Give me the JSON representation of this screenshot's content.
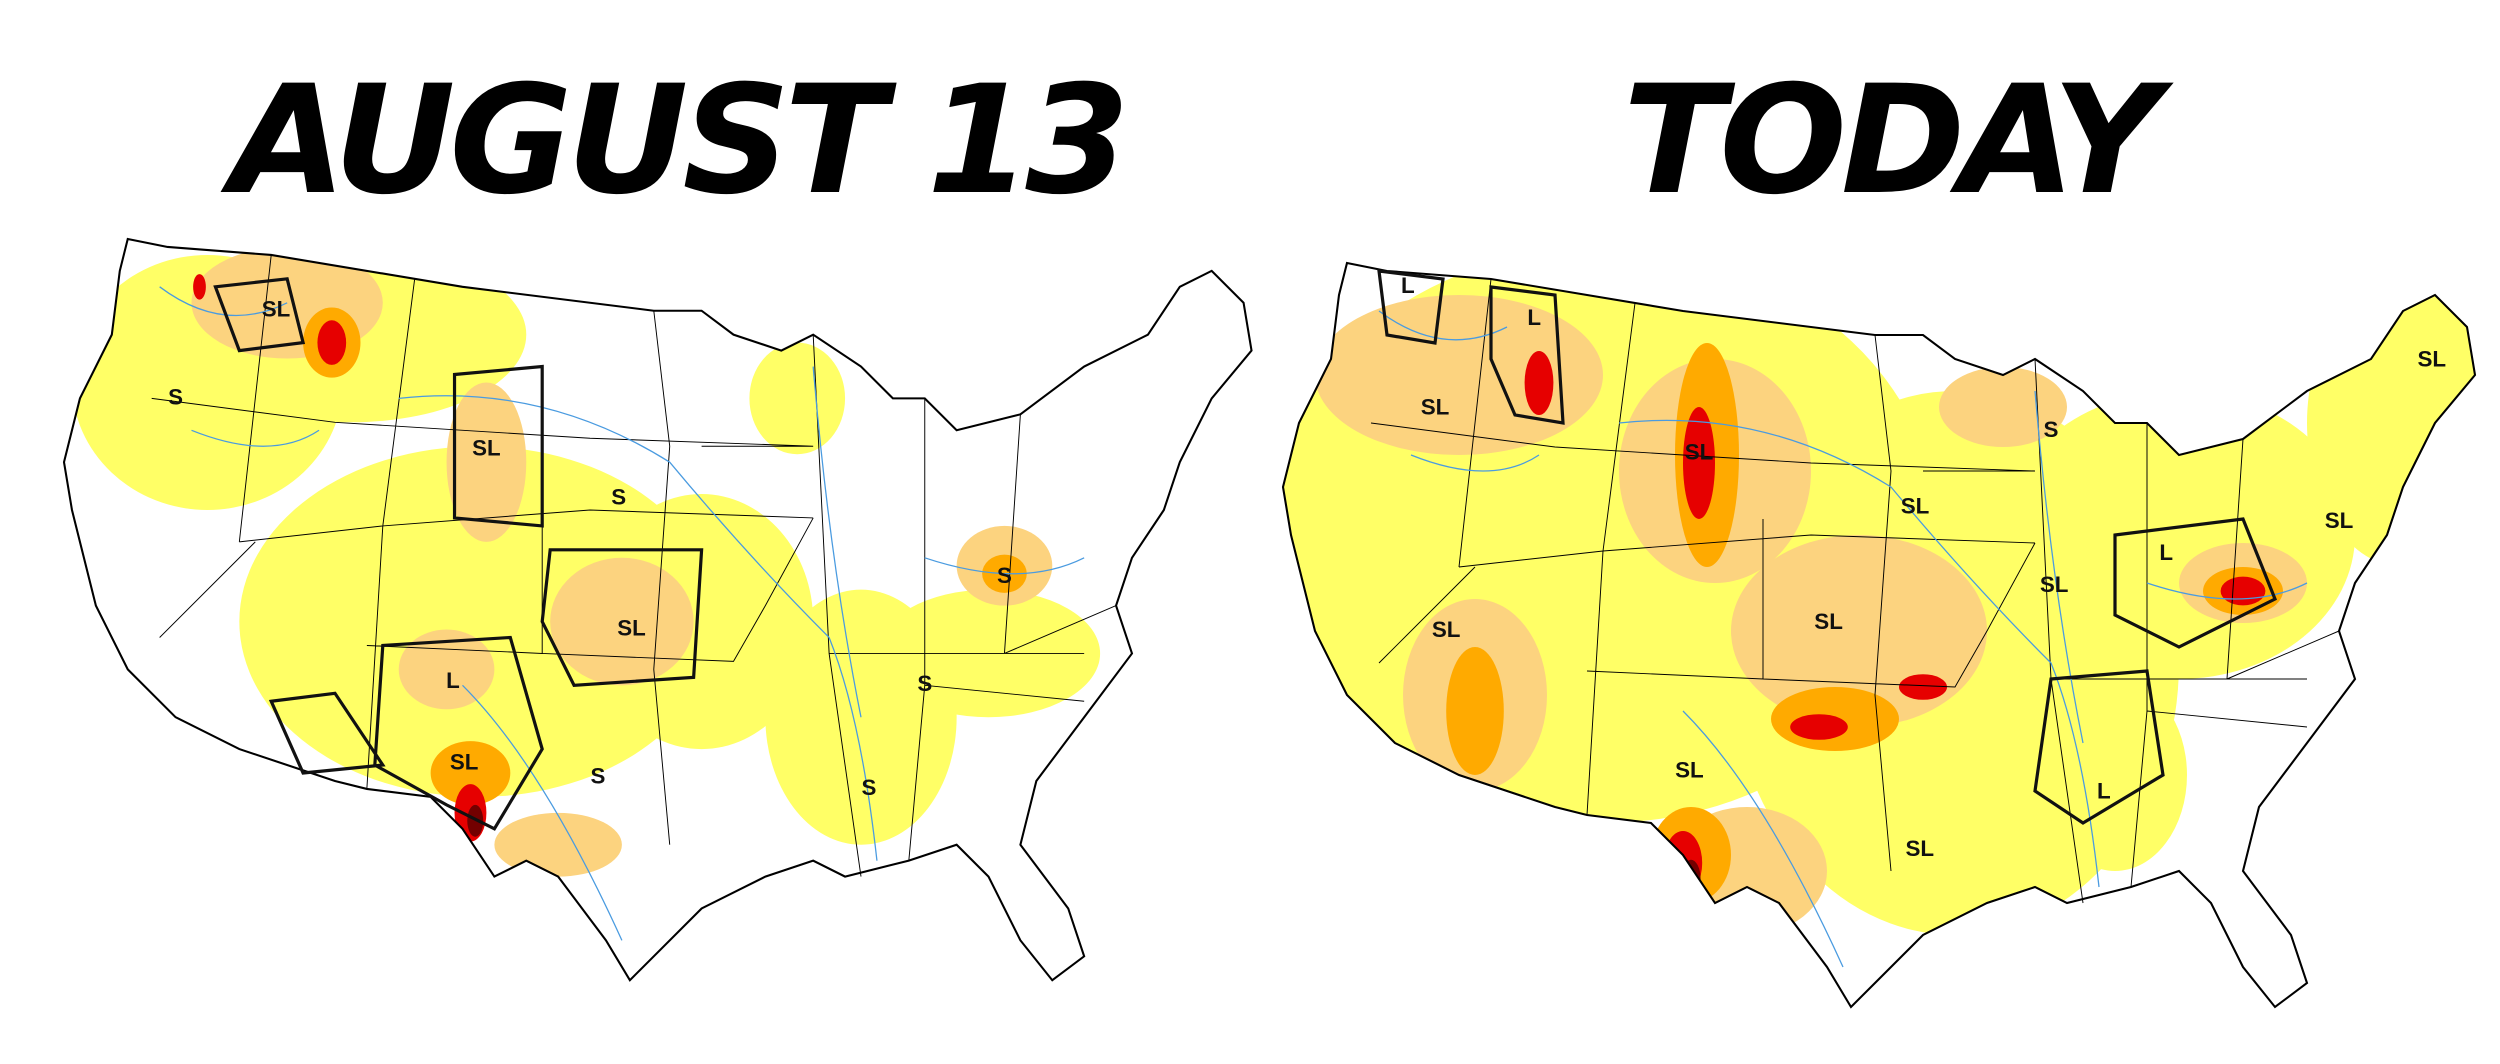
{
  "maps": [
    {
      "title": "AUGUST 13",
      "labels": [
        "SL",
        "S",
        "SL",
        "S",
        "SL",
        "L",
        "SL",
        "S",
        "S",
        "S",
        "S"
      ]
    },
    {
      "title": "TODAY",
      "labels": [
        "L",
        "L",
        "SL",
        "SL",
        "S",
        "SL",
        "SL",
        "L",
        "SL",
        "SL",
        "SL",
        "SL",
        "SL",
        "L",
        "SL"
      ]
    }
  ]
}
